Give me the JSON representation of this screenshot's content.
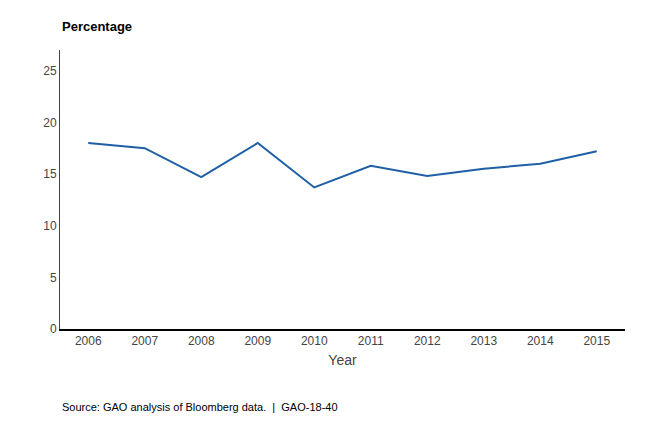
{
  "chart_data": {
    "type": "line",
    "x": [
      2006,
      2007,
      2008,
      2009,
      2010,
      2011,
      2012,
      2013,
      2014,
      2015
    ],
    "values": [
      18.0,
      17.5,
      14.7,
      18.0,
      13.7,
      15.8,
      14.8,
      15.5,
      16.0,
      17.2
    ],
    "color": "#1f5fa6",
    "xlabel": "Year",
    "ylabel": "Percentage",
    "xlim": [
      2005.5,
      2015.5
    ],
    "xticks": [
      2006,
      2007,
      2008,
      2009,
      2010,
      2011,
      2012,
      2013,
      2014,
      2015
    ],
    "ylim": [
      0,
      27
    ],
    "yticks": [
      0,
      5,
      10,
      15,
      20,
      25
    ],
    "grid": false,
    "annotations": [
      "Source: GAO analysis of Bloomberg data.  |  GAO-18-40"
    ]
  }
}
